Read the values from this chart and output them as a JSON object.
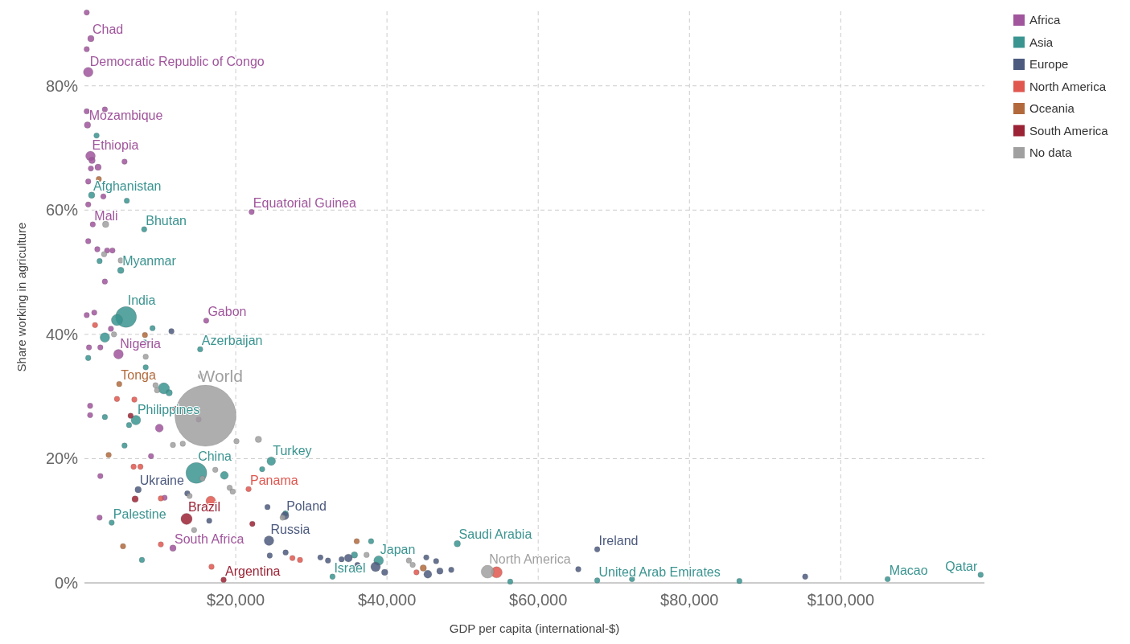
{
  "chart_data": {
    "type": "bubble",
    "xlabel": "GDP per capita (international-$)",
    "ylabel": "Share working in agriculture",
    "xlim": [
      0,
      119000
    ],
    "ylim": [
      0,
      92
    ],
    "xticks": [
      {
        "value": 20000,
        "label": "$20,000"
      },
      {
        "value": 40000,
        "label": "$40,000"
      },
      {
        "value": 60000,
        "label": "$60,000"
      },
      {
        "value": 80000,
        "label": "$80,000"
      },
      {
        "value": 100000,
        "label": "$100,000"
      }
    ],
    "yticks": [
      {
        "value": 0,
        "label": "0%"
      },
      {
        "value": 20,
        "label": "20%"
      },
      {
        "value": 40,
        "label": "40%"
      },
      {
        "value": 60,
        "label": "60%"
      },
      {
        "value": 80,
        "label": "80%"
      }
    ],
    "grid": true,
    "legend": "top right",
    "series": [
      {
        "name": "Africa",
        "color": "#a0559c",
        "x": [
          300,
          850,
          300,
          500,
          300,
          400,
          2700,
          800,
          1000,
          1800,
          5300,
          850,
          500,
          2500,
          500,
          1100,
          500,
          1700,
          3000,
          3700,
          2700,
          300,
          1300,
          4500,
          600,
          2100,
          3500,
          16100,
          22100,
          750,
          750,
          9900,
          15100,
          2100,
          8800,
          10600,
          2000,
          11700
        ],
        "values": [
          91.8,
          87.6,
          85.9,
          82.2,
          75.9,
          73.7,
          76.2,
          68.7,
          68,
          66.9,
          67.8,
          66.7,
          64.6,
          62.2,
          60.9,
          57.7,
          55,
          53.7,
          53.5,
          53.5,
          48.5,
          43.1,
          43.5,
          36.8,
          37.9,
          37.9,
          40.9,
          42.2,
          59.7,
          28.5,
          27,
          24.9,
          26.3,
          17.2,
          20.4,
          13.7,
          10.5,
          5.6
        ],
        "sizes": [
          0.008,
          0.011,
          0.008,
          0.025,
          0.008,
          0.011,
          0.008,
          0.025,
          0.011,
          0.011,
          0.008,
          0.008,
          0.008,
          0.008,
          0.008,
          0.008,
          0.008,
          0.008,
          0.008,
          0.008,
          0.008,
          0.008,
          0.008,
          0.025,
          0.008,
          0.008,
          0.008,
          0.008,
          0.008,
          0.008,
          0.008,
          0.017,
          0.008,
          0.008,
          0.008,
          0.008,
          0.008,
          0.011
        ]
      },
      {
        "name": "Asia",
        "color": "#3a9490",
        "x": [
          1600,
          950,
          5600,
          7900,
          2000,
          4800,
          5500,
          4300,
          2700,
          500,
          8000,
          9000,
          15300,
          8100,
          10500,
          11200,
          2700,
          6800,
          5900,
          5300,
          14800,
          18500,
          23500,
          24700,
          3600,
          7600,
          26600,
          49300,
          37900,
          35700,
          38900,
          32800,
          67800,
          72400,
          86600,
          106200,
          118500,
          56300
        ],
        "values": [
          72,
          62.4,
          61.5,
          56.9,
          51.8,
          50.3,
          42.8,
          42.3,
          39.5,
          36.2,
          38.7,
          41,
          37.6,
          34.7,
          31.3,
          30.6,
          26.7,
          26.2,
          25.4,
          22.1,
          17.7,
          17.3,
          18.3,
          19.6,
          9.7,
          3.7,
          11.2,
          6.3,
          6.7,
          4.5,
          3.6,
          1,
          0.4,
          0.6,
          0.3,
          0.6,
          1.3,
          0.2
        ],
        "sizes": [
          0.008,
          0.011,
          0.008,
          0.008,
          0.008,
          0.011,
          0.117,
          0.034,
          0.025,
          0.008,
          0.008,
          0.008,
          0.008,
          0.008,
          0.034,
          0.011,
          0.008,
          0.025,
          0.008,
          0.008,
          0.117,
          0.017,
          0.008,
          0.02,
          0.008,
          0.008,
          0.008,
          0.011,
          0.008,
          0.011,
          0.025,
          0.008,
          0.008,
          0.008,
          0.008,
          0.008,
          0.008,
          0.008
        ]
      },
      {
        "name": "Europe",
        "color": "#4c5a7e",
        "x": [
          67800,
          65300,
          95300,
          24400,
          26500,
          24200,
          16500,
          7100,
          13600,
          26600,
          31200,
          34000,
          34900,
          36100,
          38500,
          39700,
          45400,
          45200,
          46500,
          47000,
          48500,
          32200,
          24500,
          11500
        ],
        "values": [
          5.4,
          2.2,
          1,
          6.8,
          10.8,
          12.2,
          10,
          15,
          14.4,
          4.9,
          4.1,
          3.8,
          4,
          2.9,
          2.6,
          1.7,
          1.4,
          4.1,
          3.5,
          1.9,
          2.1,
          3.6,
          4.4,
          40.5
        ],
        "sizes": [
          0.008,
          0.008,
          0.008,
          0.025,
          0.017,
          0.008,
          0.008,
          0.011,
          0.008,
          0.008,
          0.008,
          0.008,
          0.017,
          0.008,
          0.025,
          0.011,
          0.017,
          0.008,
          0.008,
          0.011,
          0.008,
          0.008,
          0.008,
          0.008
        ]
      },
      {
        "name": "North America",
        "color": "#e0574f",
        "x": [
          21700,
          16700,
          6500,
          7400,
          4300,
          6600,
          10100,
          10100,
          16800,
          27500,
          28500,
          1400,
          43900,
          54500
        ],
        "values": [
          15.1,
          13.2,
          18.7,
          18.7,
          29.6,
          29.5,
          13.6,
          6.2,
          2.6,
          4,
          3.7,
          41.5,
          1.7,
          1.7
        ],
        "sizes": [
          0.008,
          0.025,
          0.008,
          0.008,
          0.008,
          0.008,
          0.008,
          0.008,
          0.008,
          0.008,
          0.008,
          0.008,
          0.008,
          0.034
        ]
      },
      {
        "name": "Oceania",
        "color": "#b26a3c",
        "x": [
          4600,
          3200,
          5100,
          36000,
          44800,
          8000,
          1900
        ],
        "values": [
          32,
          20.6,
          5.9,
          6.7,
          2.4,
          39.9,
          65
        ],
        "sizes": [
          0.008,
          0.008,
          0.008,
          0.008,
          0.011,
          0.008,
          0.008
        ]
      },
      {
        "name": "South America",
        "color": "#9b2335",
        "x": [
          13500,
          18400,
          6100,
          12000,
          22200,
          6700
        ],
        "values": [
          10.3,
          0.5,
          26.9,
          28,
          9.5,
          13.5
        ],
        "sizes": [
          0.034,
          0.008,
          0.008,
          0.008,
          0.008,
          0.011
        ]
      },
      {
        "name": "No data",
        "color": "#a0a0a0",
        "x": [
          16000,
          53300,
          2800,
          2600,
          4800,
          8100,
          3900,
          9400,
          9600,
          15400,
          20100,
          23000,
          11700,
          13000,
          17300,
          15600,
          19200,
          19600,
          13900,
          26200,
          37300,
          42900,
          43400,
          14500
        ],
        "values": [
          26.9,
          1.8,
          57.7,
          52.9,
          51.9,
          36.4,
          40,
          31.8,
          31,
          33.3,
          22.8,
          23.1,
          22.2,
          22.4,
          18.2,
          16.8,
          15.3,
          14.7,
          14,
          10.5,
          4.5,
          3.6,
          2.9,
          8.5
        ],
        "sizes": [
          1,
          0.044,
          0.011,
          0.008,
          0.008,
          0.008,
          0.008,
          0.008,
          0.008,
          0.008,
          0.008,
          0.011,
          0.008,
          0.008,
          0.008,
          0.008,
          0.008,
          0.008,
          0.008,
          0.008,
          0.008,
          0.008,
          0.008,
          0.008
        ]
      }
    ],
    "annotations": [
      {
        "text": "Chad",
        "x": 850,
        "y": 87.6
      },
      {
        "text": "Democratic Republic of Congo",
        "x": 500,
        "y": 82.2
      },
      {
        "text": "Mozambique",
        "x": 400,
        "y": 73.7
      },
      {
        "text": "Ethiopia",
        "x": 800,
        "y": 68.7
      },
      {
        "text": "Afghanistan",
        "x": 950,
        "y": 62.4
      },
      {
        "text": "Equatorial Guinea",
        "x": 22100,
        "y": 59.7
      },
      {
        "text": "Mali",
        "x": 1100,
        "y": 57.7
      },
      {
        "text": "Bhutan",
        "x": 7900,
        "y": 56.9
      },
      {
        "text": "Myanmar",
        "x": 4800,
        "y": 50.3
      },
      {
        "text": "India",
        "x": 5500,
        "y": 42.8
      },
      {
        "text": "Gabon",
        "x": 16100,
        "y": 42.2
      },
      {
        "text": "Azerbaijan",
        "x": 15300,
        "y": 37.6
      },
      {
        "text": "Nigeria",
        "x": 4500,
        "y": 36.8
      },
      {
        "text": "Tonga",
        "x": 4600,
        "y": 32
      },
      {
        "text": "World",
        "x": 16000,
        "y": 26.9
      },
      {
        "text": "Philippines",
        "x": 6800,
        "y": 26.2
      },
      {
        "text": "Turkey",
        "x": 24700,
        "y": 19.6
      },
      {
        "text": "China",
        "x": 14800,
        "y": 17.7
      },
      {
        "text": "Panama",
        "x": 21700,
        "y": 15.1
      },
      {
        "text": "Ukraine",
        "x": 7100,
        "y": 15
      },
      {
        "text": "Poland",
        "x": 26500,
        "y": 10.8
      },
      {
        "text": "Brazil",
        "x": 13500,
        "y": 10.3
      },
      {
        "text": "Palestine",
        "x": 3600,
        "y": 9.7
      },
      {
        "text": "Russia",
        "x": 24400,
        "y": 6.8
      },
      {
        "text": "Saudi Arabia",
        "x": 49300,
        "y": 6.3
      },
      {
        "text": "Ireland",
        "x": 67800,
        "y": 5.4
      },
      {
        "text": "South Africa",
        "x": 11700,
        "y": 5.6
      },
      {
        "text": "Japan",
        "x": 38900,
        "y": 3.6
      },
      {
        "text": "North America",
        "x": 53300,
        "y": 1.8
      },
      {
        "text": "Israel",
        "x": 32800,
        "y": 1
      },
      {
        "text": "Argentina",
        "x": 18400,
        "y": 0.5
      },
      {
        "text": "United Arab Emirates",
        "x": 67800,
        "y": 0.4
      },
      {
        "text": "Macao",
        "x": 106200,
        "y": 0.6
      },
      {
        "text": "Qatar",
        "x": 118500,
        "y": 1.3
      }
    ]
  }
}
